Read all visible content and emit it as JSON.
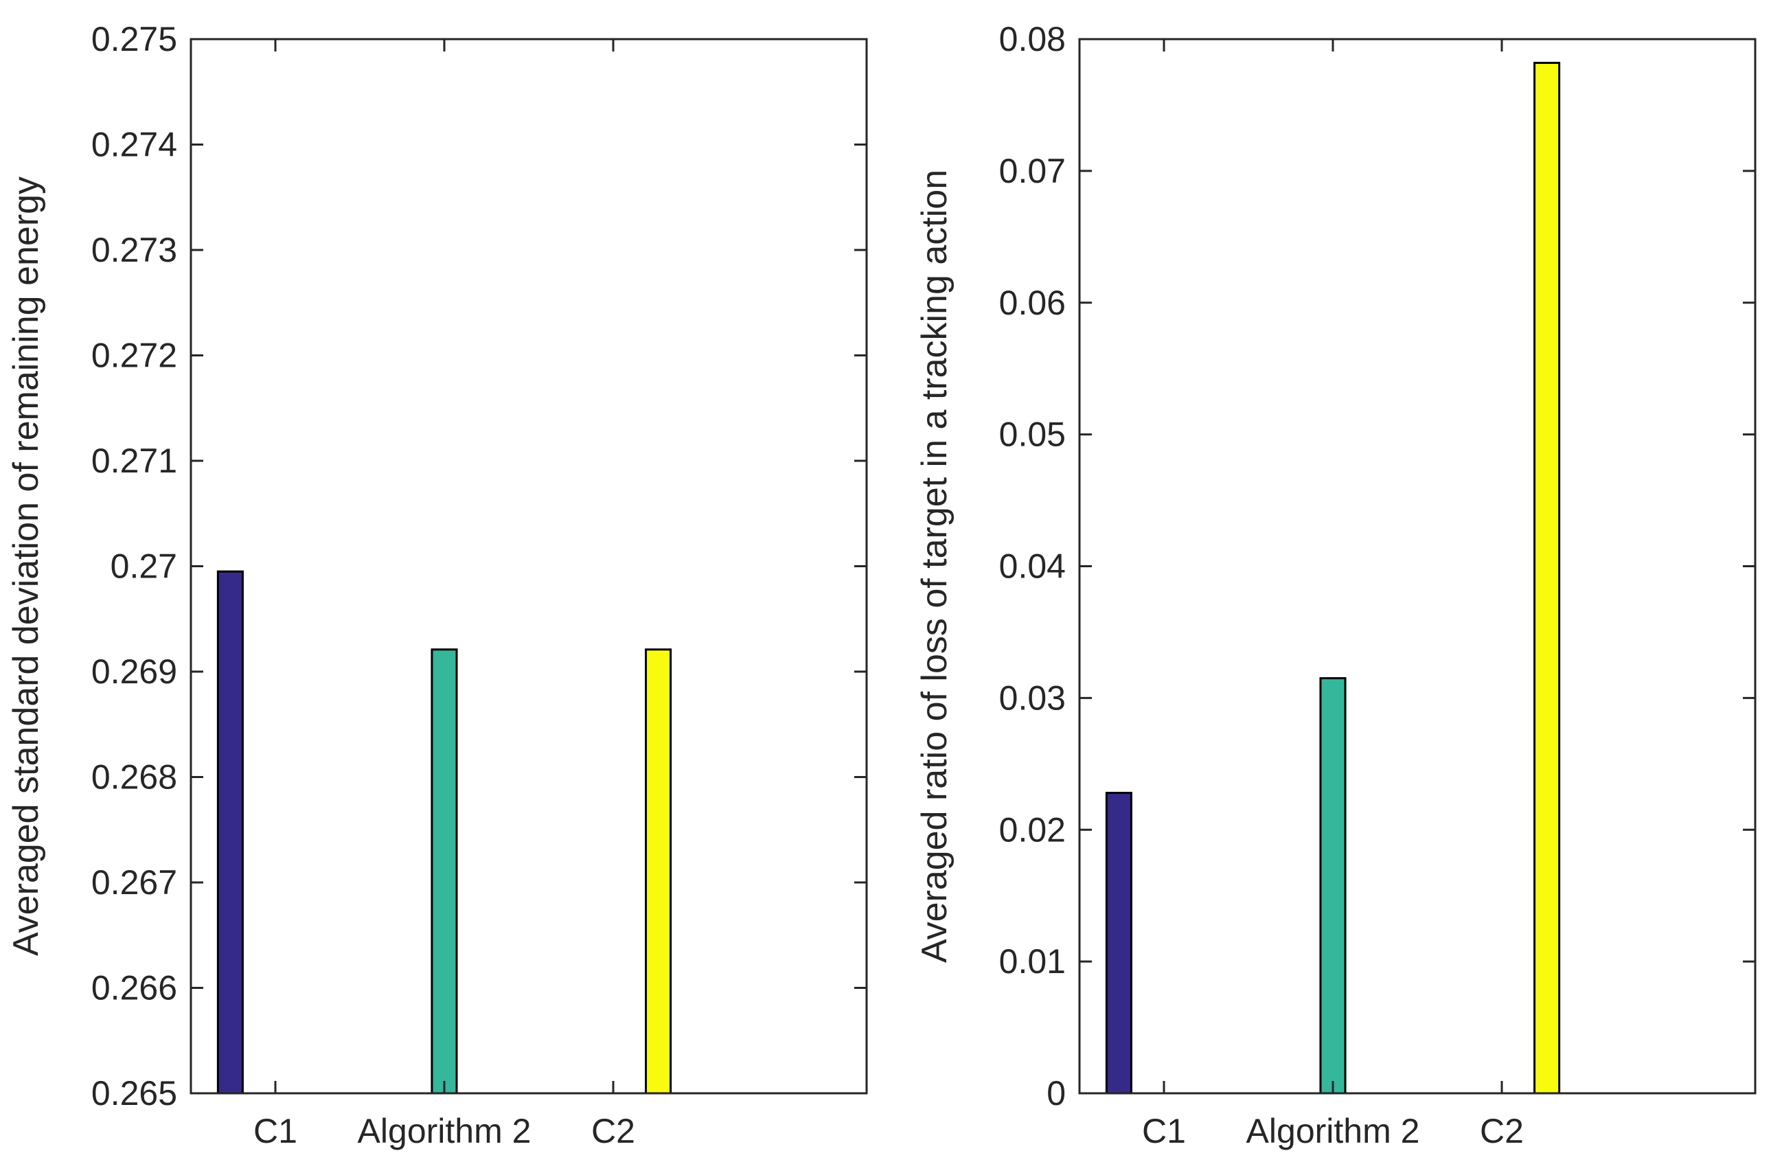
{
  "chart_data": [
    {
      "type": "bar",
      "ylabel": "Averaged standard deviation of remaining energy",
      "xlabel": "",
      "title": "",
      "ylim": [
        0.265,
        0.275
      ],
      "yticks": [
        0.265,
        0.266,
        0.267,
        0.268,
        0.269,
        0.27,
        0.271,
        0.272,
        0.273,
        0.274,
        0.275
      ],
      "ytick_labels": [
        "0.265",
        "0.266",
        "0.267",
        "0.268",
        "0.269",
        "0.27",
        "0.271",
        "0.272",
        "0.273",
        "0.274",
        "0.275"
      ],
      "categories": [
        "C1",
        "Algorithm 2",
        "C2"
      ],
      "series": [
        {
          "name": "C1",
          "color": "#352a87",
          "values": [
            0.26995,
            null,
            null
          ]
        },
        {
          "name": "Algorithm 2",
          "color": "#35b79c",
          "values": [
            null,
            0.26921,
            null
          ]
        },
        {
          "name": "C2",
          "color": "#f9fb0e",
          "values": [
            null,
            null,
            0.26921
          ]
        }
      ],
      "grid": false
    },
    {
      "type": "bar",
      "ylabel": "Averaged ratio of loss of target in a tracking action",
      "xlabel": "",
      "title": "",
      "ylim": [
        0,
        0.08
      ],
      "yticks": [
        0,
        0.01,
        0.02,
        0.03,
        0.04,
        0.05,
        0.06,
        0.07,
        0.08
      ],
      "ytick_labels": [
        "0",
        "0.01",
        "0.02",
        "0.03",
        "0.04",
        "0.05",
        "0.06",
        "0.07",
        "0.08"
      ],
      "categories": [
        "C1",
        "Algorithm 2",
        "C2"
      ],
      "series": [
        {
          "name": "C1",
          "color": "#352a87",
          "values": [
            0.0228,
            null,
            null
          ]
        },
        {
          "name": "Algorithm 2",
          "color": "#35b79c",
          "values": [
            null,
            0.0315,
            null
          ]
        },
        {
          "name": "C2",
          "color": "#f9fb0e",
          "values": [
            null,
            null,
            0.0782
          ]
        }
      ],
      "grid": false
    }
  ]
}
